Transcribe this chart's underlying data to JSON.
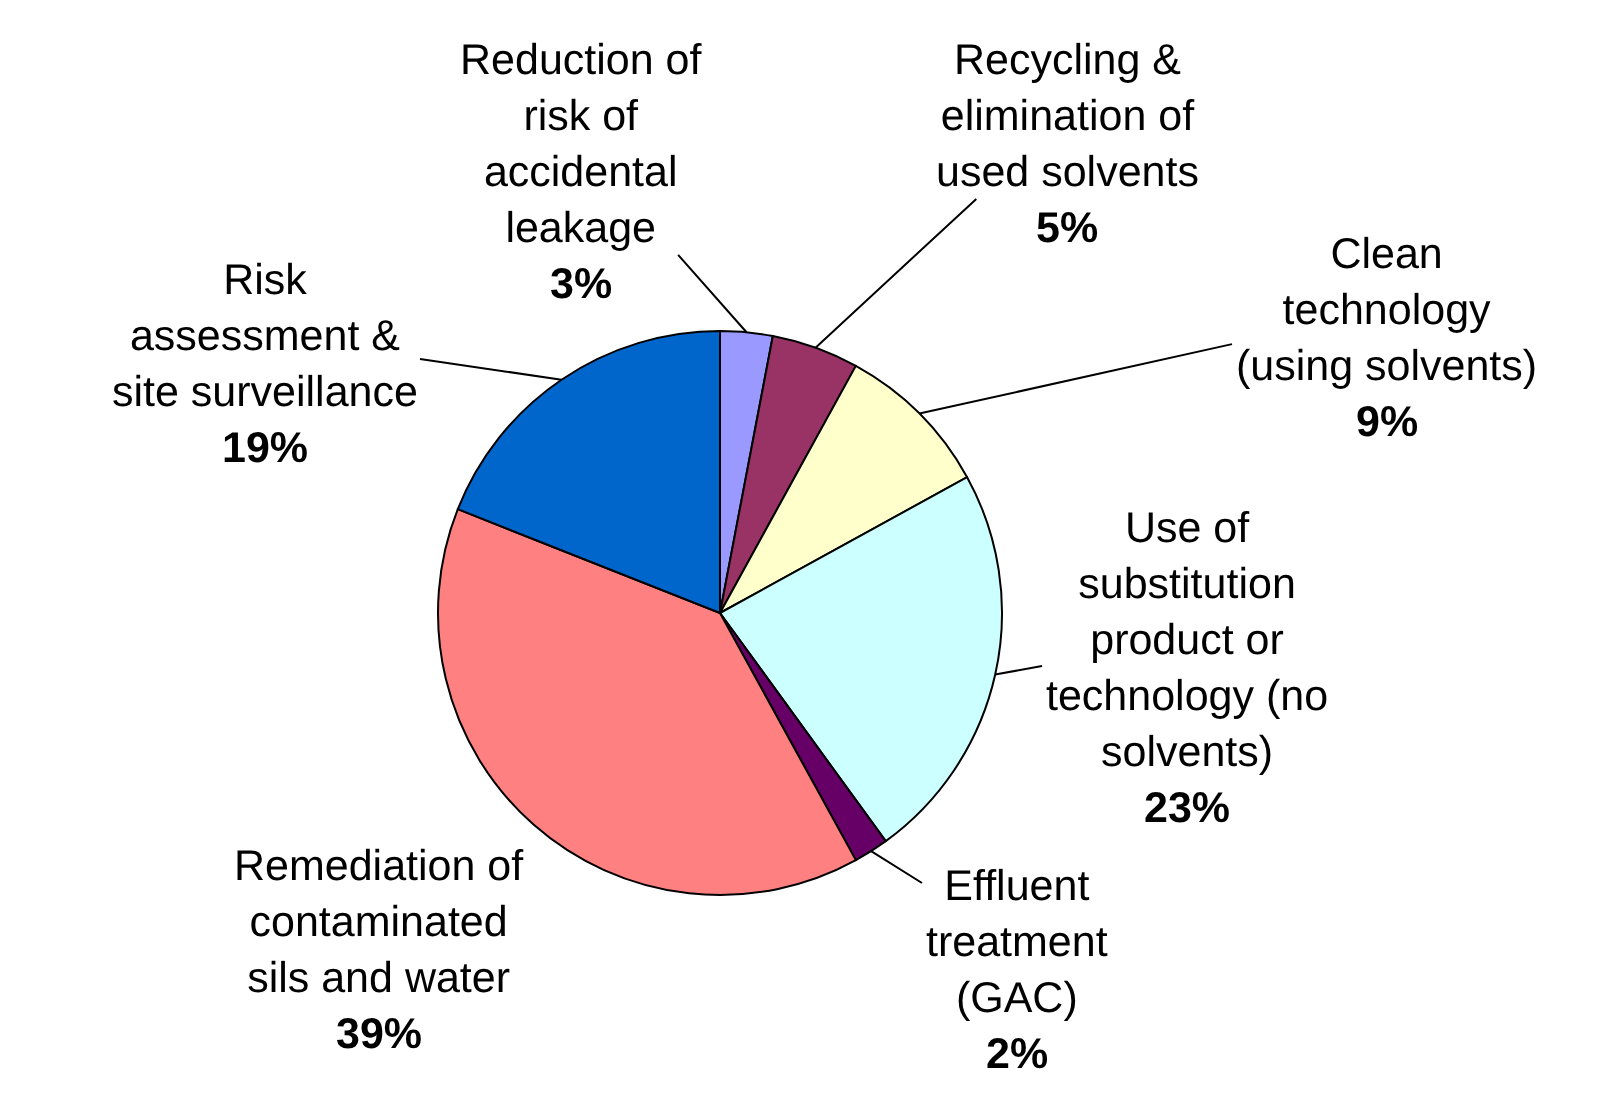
{
  "chart_data": {
    "type": "pie",
    "categories": [
      "Reduction of risk of accidental leakage",
      "Recycling & elimination of used solvents",
      "Clean technology (using solvents)",
      "Use of substitution product or technology (no solvents)",
      "Effluent treatment (GAC)",
      "Remediation of contaminated sils and water",
      "Risk assessment & site surveillance"
    ],
    "values": [
      3,
      5,
      9,
      23,
      2,
      39,
      19
    ],
    "value_labels": [
      "3%",
      "5%",
      "9%",
      "23%",
      "2%",
      "39%",
      "19%"
    ],
    "colors": [
      "#9999ff",
      "#993366",
      "#ffffcc",
      "#ccffff",
      "#660066",
      "#ff8080",
      "#0066cc"
    ]
  }
}
